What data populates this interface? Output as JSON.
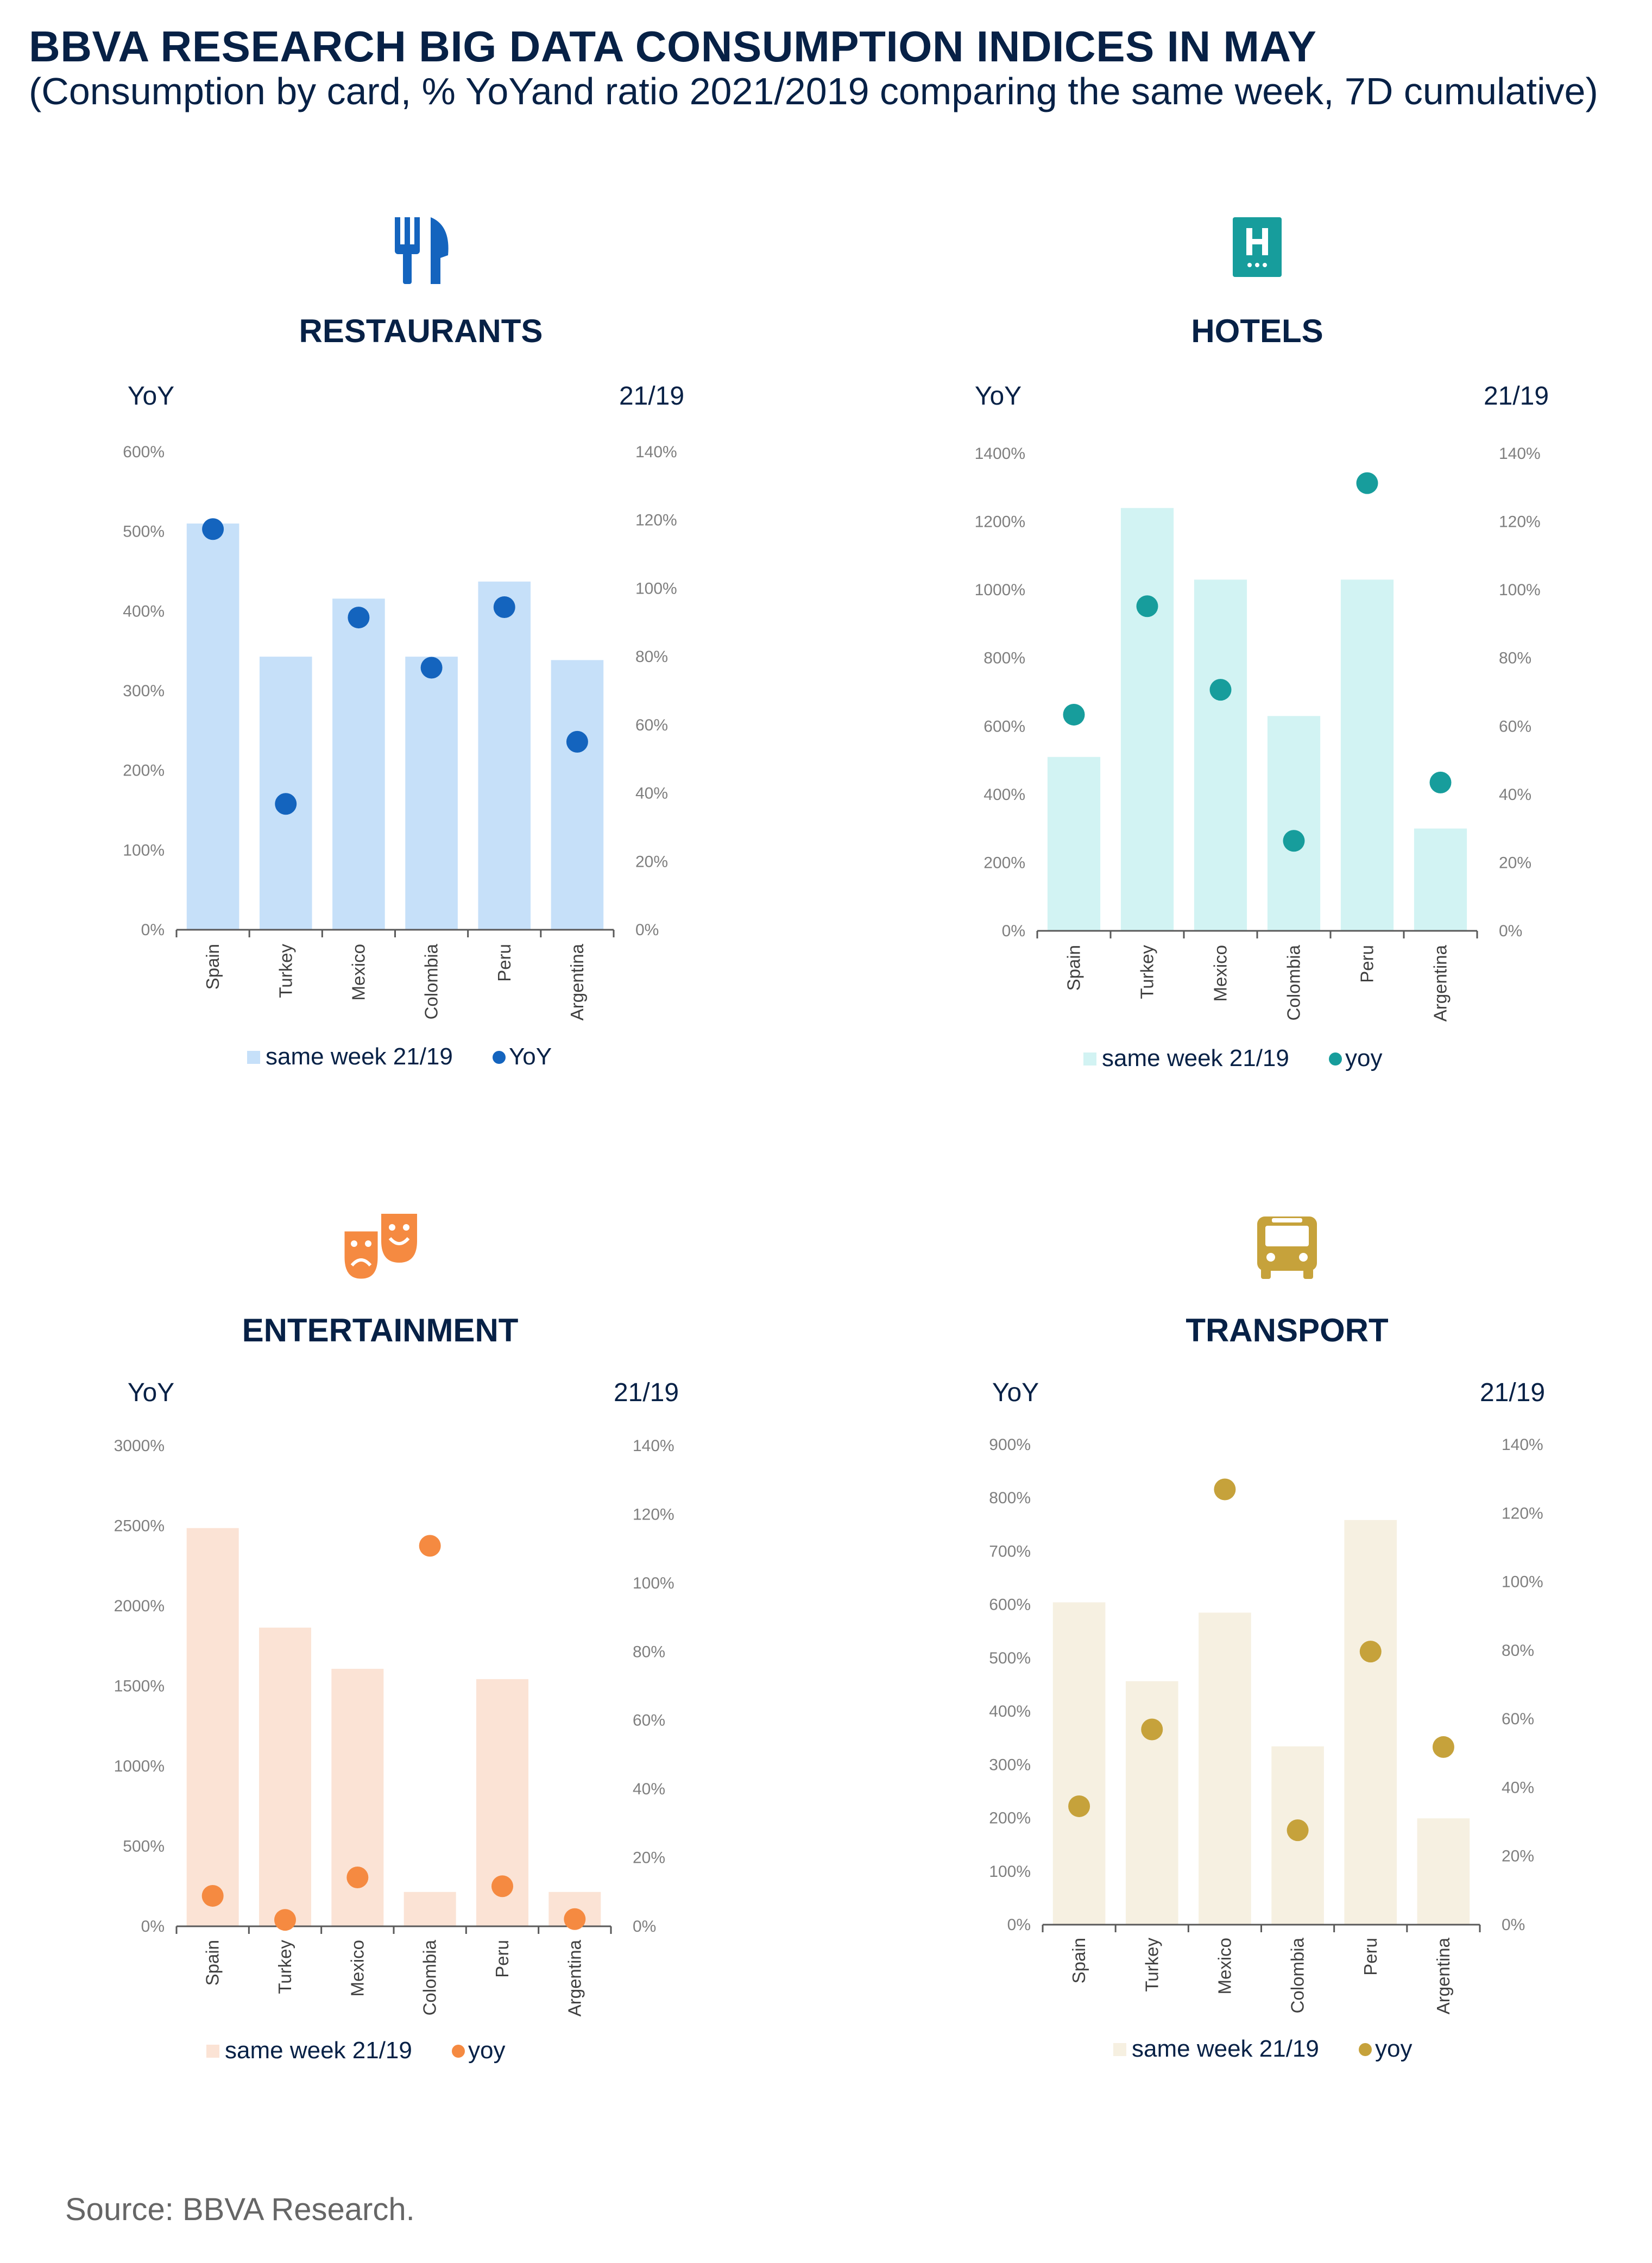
{
  "header": {
    "title": "BBVA RESEARCH BIG DATA CONSUMPTION INDICES IN MAY",
    "subtitle": "(Consumption by card, % YoYand ratio 2021/2019 comparing the same week, 7D cumulative)"
  },
  "footer": {
    "source": "Source: BBVA Research."
  },
  "chart_data": [
    {
      "type": "bar",
      "title": "RESTAURANTS",
      "icon": "utensils-icon",
      "color_bar": "#c6e0f9",
      "color_point": "#1464be",
      "ylabel_left": "YoY",
      "ylabel_right": "21/19",
      "left_ticks": [
        "0%",
        "100%",
        "200%",
        "300%",
        "400%",
        "500%",
        "600%"
      ],
      "right_ticks": [
        "0%",
        "20%",
        "40%",
        "60%",
        "80%",
        "100%",
        "120%",
        "140%"
      ],
      "ylim_left": [
        0,
        600
      ],
      "ylim_right": [
        0,
        140
      ],
      "categories": [
        "Spain",
        "Turkey",
        "Mexico",
        "Colombia",
        "Peru",
        "Argentina"
      ],
      "series": [
        {
          "name": "same week 21/19",
          "axis": "right",
          "kind": "bar",
          "values": [
            119,
            80,
            97,
            80,
            102,
            79
          ]
        },
        {
          "name": "YoY",
          "axis": "left",
          "kind": "point",
          "values": [
            503,
            158,
            392,
            329,
            405,
            236
          ]
        }
      ],
      "legend": [
        "same week 21/19",
        "YoY"
      ]
    },
    {
      "type": "bar",
      "title": "HOTELS",
      "icon": "hotel-icon",
      "color_bar": "#d2f3f3",
      "color_point": "#179d9c",
      "ylabel_left": "YoY",
      "ylabel_right": "21/19",
      "left_ticks": [
        "0%",
        "200%",
        "400%",
        "600%",
        "800%",
        "1000%",
        "1200%",
        "1400%"
      ],
      "right_ticks": [
        "0%",
        "20%",
        "40%",
        "60%",
        "80%",
        "100%",
        "120%",
        "140%"
      ],
      "ylim_left": [
        0,
        1400
      ],
      "ylim_right": [
        0,
        140
      ],
      "categories": [
        "Spain",
        "Turkey",
        "Mexico",
        "Colombia",
        "Peru",
        "Argentina"
      ],
      "series": [
        {
          "name": "same week 21/19",
          "axis": "right",
          "kind": "bar",
          "values": [
            51,
            124,
            103,
            63,
            103,
            30
          ]
        },
        {
          "name": "yoy",
          "axis": "left",
          "kind": "point",
          "values": [
            634,
            952,
            707,
            264,
            1313,
            435
          ]
        }
      ],
      "legend": [
        "same week 21/19",
        "yoy"
      ]
    },
    {
      "type": "bar",
      "title": "ENTERTAINMENT",
      "icon": "theater-masks-icon",
      "color_bar": "#fbe3d5",
      "color_point": "#f58a41",
      "ylabel_left": "YoY",
      "ylabel_right": "21/19",
      "left_ticks": [
        "0%",
        "500%",
        "1000%",
        "1500%",
        "2000%",
        "2500%",
        "3000%"
      ],
      "right_ticks": [
        "0%",
        "20%",
        "40%",
        "60%",
        "80%",
        "100%",
        "120%",
        "140%"
      ],
      "ylim_left": [
        0,
        3000
      ],
      "ylim_right": [
        0,
        140
      ],
      "categories": [
        "Spain",
        "Turkey",
        "Mexico",
        "Colombia",
        "Peru",
        "Argentina"
      ],
      "series": [
        {
          "name": "same week 21/19",
          "axis": "right",
          "kind": "bar",
          "values": [
            116,
            87,
            75,
            10,
            72,
            10
          ]
        },
        {
          "name": "yoy",
          "axis": "left",
          "kind": "point",
          "values": [
            190,
            40,
            305,
            2375,
            250,
            45
          ]
        }
      ],
      "legend": [
        "same week 21/19",
        "yoy"
      ]
    },
    {
      "type": "bar",
      "title": "TRANSPORT",
      "icon": "bus-icon",
      "color_bar": "#f6f0e1",
      "color_point": "#c6a23b",
      "ylabel_left": "YoY",
      "ylabel_right": "21/19",
      "left_ticks": [
        "0%",
        "100%",
        "200%",
        "300%",
        "400%",
        "500%",
        "600%",
        "700%",
        "800%",
        "900%"
      ],
      "right_ticks": [
        "0%",
        "20%",
        "40%",
        "60%",
        "80%",
        "100%",
        "120%",
        "140%"
      ],
      "ylim_left": [
        0,
        900
      ],
      "ylim_right": [
        0,
        140
      ],
      "categories": [
        "Spain",
        "Turkey",
        "Mexico",
        "Colombia",
        "Peru",
        "Argentina"
      ],
      "series": [
        {
          "name": "same week 21/19",
          "axis": "right",
          "kind": "bar",
          "values": [
            94,
            71,
            91,
            52,
            118,
            31
          ]
        },
        {
          "name": "yoy",
          "axis": "left",
          "kind": "point",
          "values": [
            222,
            366,
            816,
            177,
            512,
            333
          ]
        }
      ],
      "legend": [
        "same week 21/19",
        "yoy"
      ]
    }
  ]
}
